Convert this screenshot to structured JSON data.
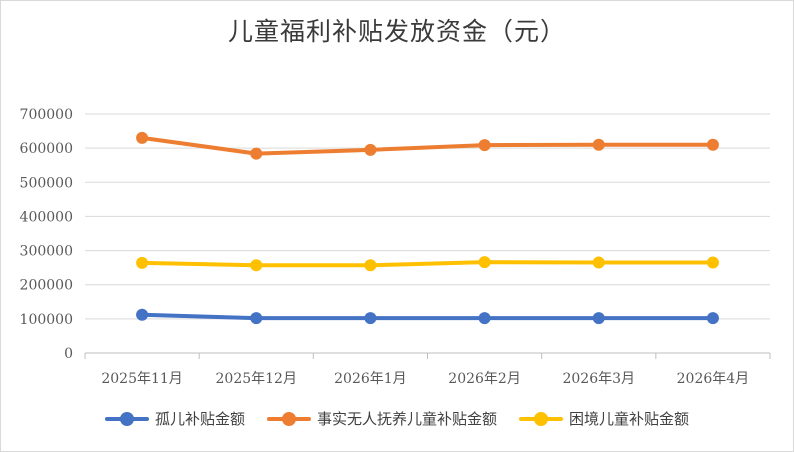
{
  "chart_data": {
    "type": "line",
    "title": "儿童福利补贴发放资金（元）",
    "categories": [
      "2025年11月",
      "2025年12月",
      "2026年1月",
      "2026年2月",
      "2026年3月",
      "2026年4月"
    ],
    "ylim": [
      0,
      700000
    ],
    "yticks": [
      "0",
      "100000",
      "200000",
      "300000",
      "400000",
      "500000",
      "600000",
      "700000"
    ],
    "grid": true,
    "legend_position": "bottom",
    "series": [
      {
        "name": "孤儿补贴金额",
        "color": "#4472C4",
        "values": [
          112000,
          102000,
          102000,
          102000,
          102000,
          102000
        ]
      },
      {
        "name": "事实无人抚养儿童补贴金额",
        "color": "#ED7D31",
        "values": [
          630000,
          584000,
          595000,
          609000,
          610000,
          610000
        ]
      },
      {
        "name": "困境儿童补贴金额",
        "color": "#FFC000",
        "values": [
          264000,
          257000,
          257000,
          266000,
          265000,
          265000
        ]
      }
    ]
  }
}
